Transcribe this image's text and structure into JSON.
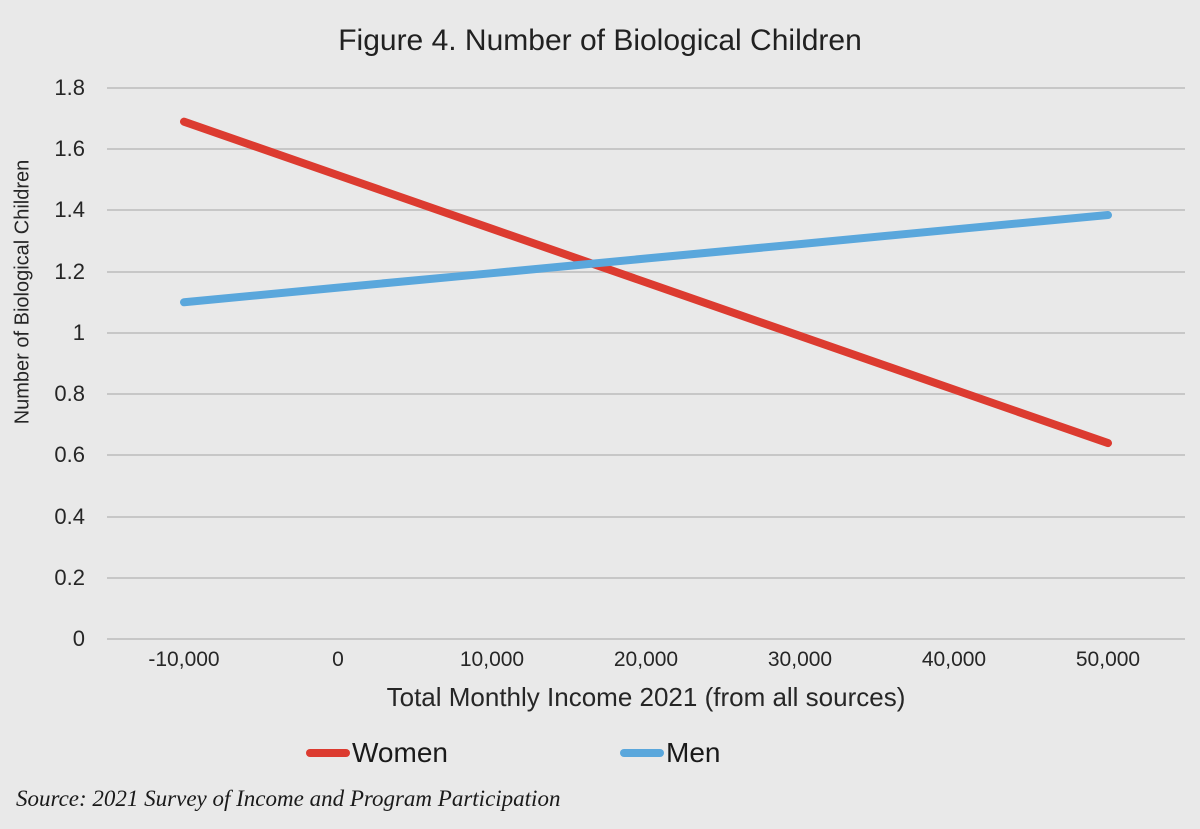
{
  "figure": {
    "source": "Source: 2021 Survey of Income and Program Participation"
  },
  "colors": {
    "background": "#E9E9E9",
    "gridline": "#C7C7C7",
    "women_line": "#DC3B30",
    "men_line": "#5AA7DC"
  },
  "chart_data": {
    "type": "line",
    "title": "Figure 4. Number of Biological Children",
    "xlabel": "Total Monthly Income 2021 (from all sources)",
    "ylabel": "Number of Biological Children",
    "x": [
      -10000,
      0,
      10000,
      20000,
      30000,
      40000,
      50000
    ],
    "x_tick_labels": [
      "-10,000",
      "0",
      "10,000",
      "20,000",
      "30,000",
      "40,000",
      "50,000"
    ],
    "y_ticks": [
      0,
      0.2,
      0.4,
      0.6,
      0.8,
      1,
      1.2,
      1.4,
      1.6,
      1.8
    ],
    "y_tick_labels": [
      "0",
      "0.2",
      "0.4",
      "0.6",
      "0.8",
      "1",
      "1.2",
      "1.4",
      "1.6",
      "1.8"
    ],
    "ylim": [
      0,
      1.8
    ],
    "grid": "horizontal",
    "legend_position": "bottom",
    "series": [
      {
        "name": "Women",
        "color": "#DC3B30",
        "values": [
          1.69,
          1.515,
          1.34,
          1.165,
          0.99,
          0.815,
          0.64
        ]
      },
      {
        "name": "Men",
        "color": "#5AA7DC",
        "values": [
          1.1,
          1.148,
          1.195,
          1.243,
          1.29,
          1.338,
          1.385
        ]
      }
    ]
  }
}
